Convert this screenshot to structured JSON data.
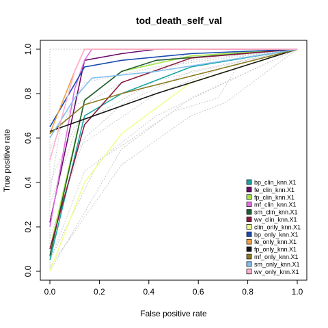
{
  "chart_data": {
    "type": "line",
    "title": "tod_death_self_val",
    "xlabel": "False positive rate",
    "ylabel": "True positive rate",
    "xlim": [
      0,
      1
    ],
    "ylim": [
      0,
      1
    ],
    "x_ticks": [
      "0.0",
      "0.2",
      "0.4",
      "0.6",
      "0.8",
      "1.0"
    ],
    "y_ticks": [
      "0.0",
      "0.2",
      "0.4",
      "0.6",
      "0.8",
      "1.0"
    ],
    "legend_position": "bottom-right",
    "series": [
      {
        "name": "bp_clin_knn.X1",
        "color": "#1aa6a6",
        "points": [
          [
            0,
            0.05
          ],
          [
            0.14,
            0.7
          ],
          [
            0.29,
            0.8
          ],
          [
            0.57,
            0.92
          ],
          [
            1,
            1
          ]
        ]
      },
      {
        "name": "fe_clin_knn.X1",
        "color": "#6a0a6a",
        "points": [
          [
            0,
            0.22
          ],
          [
            0.14,
            0.95
          ],
          [
            0.29,
            0.98
          ],
          [
            0.43,
            1.0
          ],
          [
            1,
            1
          ]
        ]
      },
      {
        "name": "fp_clin_knn.X1",
        "color": "#a8e84a",
        "points": [
          [
            0,
            0.1
          ],
          [
            0.14,
            0.77
          ],
          [
            0.29,
            0.9
          ],
          [
            0.57,
            0.97
          ],
          [
            1,
            1
          ]
        ]
      },
      {
        "name": "mf_clin_knn.X1",
        "color": "#e070e0",
        "points": [
          [
            0,
            0.2
          ],
          [
            0.1,
            0.82
          ],
          [
            0.14,
            0.95
          ],
          [
            0.17,
            1.0
          ],
          [
            1,
            1
          ]
        ]
      },
      {
        "name": "sm_clin_knn.X1",
        "color": "#1e5e30",
        "points": [
          [
            0,
            0.07
          ],
          [
            0.14,
            0.77
          ],
          [
            0.29,
            0.9
          ],
          [
            0.43,
            0.95
          ],
          [
            1,
            1
          ]
        ]
      },
      {
        "name": "wv_clin_knn.X1",
        "color": "#8a1a3e",
        "points": [
          [
            0,
            0.1
          ],
          [
            0.14,
            0.66
          ],
          [
            0.29,
            0.85
          ],
          [
            0.57,
            0.96
          ],
          [
            1,
            1
          ]
        ]
      },
      {
        "name": "clin_only_knn.X1",
        "color": "#f0ff90",
        "points": [
          [
            0,
            0.0
          ],
          [
            0.14,
            0.4
          ],
          [
            0.29,
            0.62
          ],
          [
            0.57,
            0.85
          ],
          [
            1,
            1
          ]
        ]
      },
      {
        "name": "bp_only_knn.X1",
        "color": "#1a4ab0",
        "points": [
          [
            0,
            0.65
          ],
          [
            0.14,
            0.92
          ],
          [
            0.29,
            0.95
          ],
          [
            0.57,
            0.98
          ],
          [
            1,
            1
          ]
        ]
      },
      {
        "name": "fe_only_knn.X1",
        "color": "#f0a040",
        "points": [
          [
            0,
            0.62
          ],
          [
            0.1,
            0.9
          ],
          [
            0.14,
            1.0
          ],
          [
            1,
            1
          ]
        ]
      },
      {
        "name": "fp_only_knn.X1",
        "color": "#151515",
        "points": [
          [
            0,
            0.63
          ],
          [
            0.43,
            0.8
          ],
          [
            1,
            1
          ]
        ]
      },
      {
        "name": "mf_only_knn.X1",
        "color": "#8a7a20",
        "points": [
          [
            0,
            0.62
          ],
          [
            0.14,
            0.75
          ],
          [
            0.29,
            0.8
          ],
          [
            1,
            1
          ]
        ]
      },
      {
        "name": "sm_only_knn.X1",
        "color": "#80c0f0",
        "points": [
          [
            0,
            0.6
          ],
          [
            0.1,
            0.78
          ],
          [
            0.17,
            0.87
          ],
          [
            0.43,
            0.9
          ],
          [
            1,
            1
          ]
        ]
      },
      {
        "name": "wv_only_knn.X1",
        "color": "#ffb0d0",
        "points": [
          [
            0,
            0.5
          ],
          [
            0.1,
            0.9
          ],
          [
            0.14,
            1.0
          ],
          [
            1,
            1
          ]
        ]
      }
    ],
    "background_series": [
      {
        "points": [
          [
            0,
            0.0
          ],
          [
            0.29,
            0.55
          ],
          [
            0.57,
            0.78
          ],
          [
            1,
            1
          ]
        ]
      },
      {
        "points": [
          [
            0,
            0.05
          ],
          [
            0.14,
            0.45
          ],
          [
            0.43,
            0.7
          ],
          [
            0.71,
            0.85
          ],
          [
            1,
            1
          ]
        ]
      },
      {
        "points": [
          [
            0,
            0.15
          ],
          [
            0.14,
            0.6
          ],
          [
            0.29,
            0.75
          ],
          [
            0.57,
            0.9
          ],
          [
            1,
            1
          ]
        ]
      },
      {
        "points": [
          [
            0,
            0.3
          ],
          [
            0.14,
            0.75
          ],
          [
            0.29,
            0.85
          ],
          [
            0.57,
            0.95
          ],
          [
            1,
            1
          ]
        ]
      },
      {
        "points": [
          [
            0,
            0.05
          ],
          [
            0.2,
            0.5
          ],
          [
            0.5,
            0.72
          ],
          [
            0.68,
            0.78
          ],
          [
            0.8,
            1.0
          ],
          [
            1,
            1
          ]
        ]
      },
      {
        "points": [
          [
            0,
            0.1
          ],
          [
            0.1,
            0.55
          ],
          [
            0.43,
            0.8
          ],
          [
            0.71,
            0.92
          ],
          [
            1,
            1
          ]
        ]
      },
      {
        "points": [
          [
            0,
            0.35
          ],
          [
            0.05,
            0.7
          ],
          [
            0.29,
            0.9
          ],
          [
            0.57,
            0.98
          ],
          [
            1,
            1
          ]
        ]
      },
      {
        "points": [
          [
            0,
            0.55
          ],
          [
            0.14,
            0.85
          ],
          [
            0.43,
            0.92
          ],
          [
            1,
            1
          ]
        ]
      },
      {
        "points": [
          [
            0,
            0.4
          ],
          [
            0.1,
            0.65
          ],
          [
            0.43,
            0.86
          ],
          [
            1,
            1
          ]
        ]
      },
      {
        "points": [
          [
            0,
            0.02
          ],
          [
            0.29,
            0.48
          ],
          [
            0.57,
            0.7
          ],
          [
            0.71,
            0.76
          ],
          [
            1,
            1
          ]
        ]
      },
      {
        "points": [
          [
            0,
            1.0
          ],
          [
            1,
            1.0
          ]
        ]
      },
      {
        "points": [
          [
            0,
            0.0
          ],
          [
            0,
            1.0
          ]
        ]
      }
    ]
  }
}
